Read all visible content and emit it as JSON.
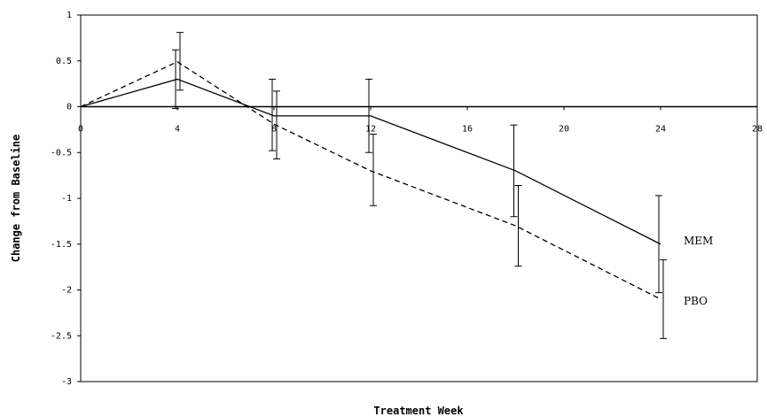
{
  "chart_data": {
    "type": "line",
    "title": "",
    "xlabel": "Treatment Week",
    "ylabel": "Change from Baseline",
    "xlim": [
      0,
      28
    ],
    "ylim": [
      -3,
      1
    ],
    "x_ticks": [
      "0",
      "4",
      "8",
      "12",
      "16",
      "20",
      "24",
      "28"
    ],
    "y_ticks": [
      "1",
      "0.5",
      "0",
      "-0.5",
      "-1",
      "-1.5",
      "-2",
      "-2.5",
      "-3"
    ],
    "grid": false,
    "legend": "inline labels at line ends",
    "series": [
      {
        "name": "MEM",
        "style": "solid",
        "color": "#000000",
        "x": [
          0,
          4,
          8,
          12,
          18,
          24
        ],
        "y": [
          0,
          0.3,
          -0.1,
          -0.1,
          -0.7,
          -1.5
        ],
        "err_low": [
          0,
          -0.02,
          -0.48,
          -0.5,
          -1.2,
          -2.03
        ],
        "err_high": [
          0,
          0.62,
          0.3,
          0.3,
          -0.2,
          -0.97
        ]
      },
      {
        "name": "PBO",
        "style": "dashed",
        "color": "#000000",
        "x": [
          0,
          4,
          8,
          12,
          18,
          24
        ],
        "y": [
          0,
          0.49,
          -0.19,
          -0.7,
          -1.3,
          -2.1
        ],
        "err_low": [
          0,
          0.18,
          -0.57,
          -1.08,
          -1.74,
          -2.53
        ],
        "err_high": [
          0,
          0.81,
          0.17,
          -0.3,
          -0.86,
          -1.67
        ]
      }
    ]
  }
}
